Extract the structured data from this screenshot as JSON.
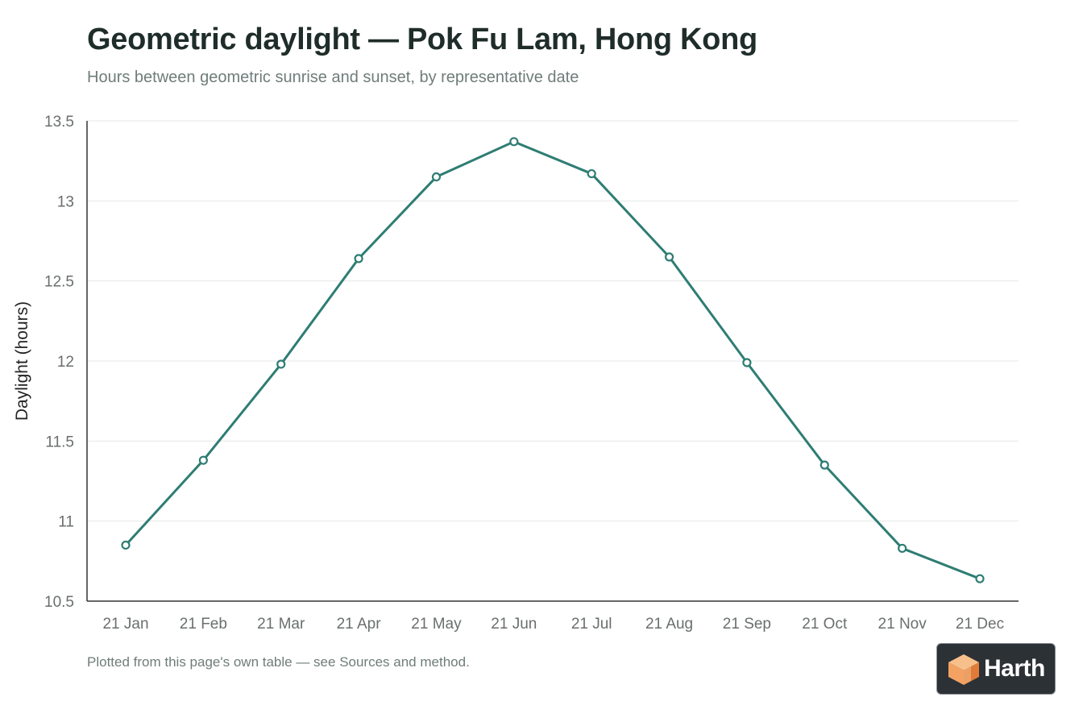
{
  "header": {
    "title": "Geometric daylight — Pok Fu Lam, Hong Kong",
    "subtitle": "Hours between geometric sunrise and sunset, by representative date"
  },
  "footnote": "Plotted from this page's own table — see Sources and method.",
  "badge": {
    "text": "Harth",
    "icon": "harth-cube-logo-icon",
    "background": "#2c3136",
    "accent": "#f4a261"
  },
  "chart_data": {
    "type": "line",
    "title": "Geometric daylight — Pok Fu Lam, Hong Kong",
    "subtitle": "Hours between geometric sunrise and sunset, by representative date",
    "xlabel": "",
    "ylabel": "Daylight (hours)",
    "categories": [
      "21 Jan",
      "21 Feb",
      "21 Mar",
      "21 Apr",
      "21 May",
      "21 Jun",
      "21 Jul",
      "21 Aug",
      "21 Sep",
      "21 Oct",
      "21 Nov",
      "21 Dec"
    ],
    "series": [
      {
        "values": [
          10.85,
          11.38,
          11.98,
          12.64,
          13.15,
          13.37,
          13.17,
          12.65,
          11.99,
          11.35,
          10.83,
          10.64
        ]
      }
    ],
    "ylim": [
      10.5,
      13.5
    ],
    "yticks": [
      10.5,
      11,
      11.5,
      12,
      12.5,
      13,
      13.5
    ],
    "ytick_labels": [
      "10.5",
      "11",
      "11.5",
      "12",
      "12.5",
      "13",
      "13.5"
    ],
    "grid": true,
    "line_color": "#2e7d73"
  }
}
